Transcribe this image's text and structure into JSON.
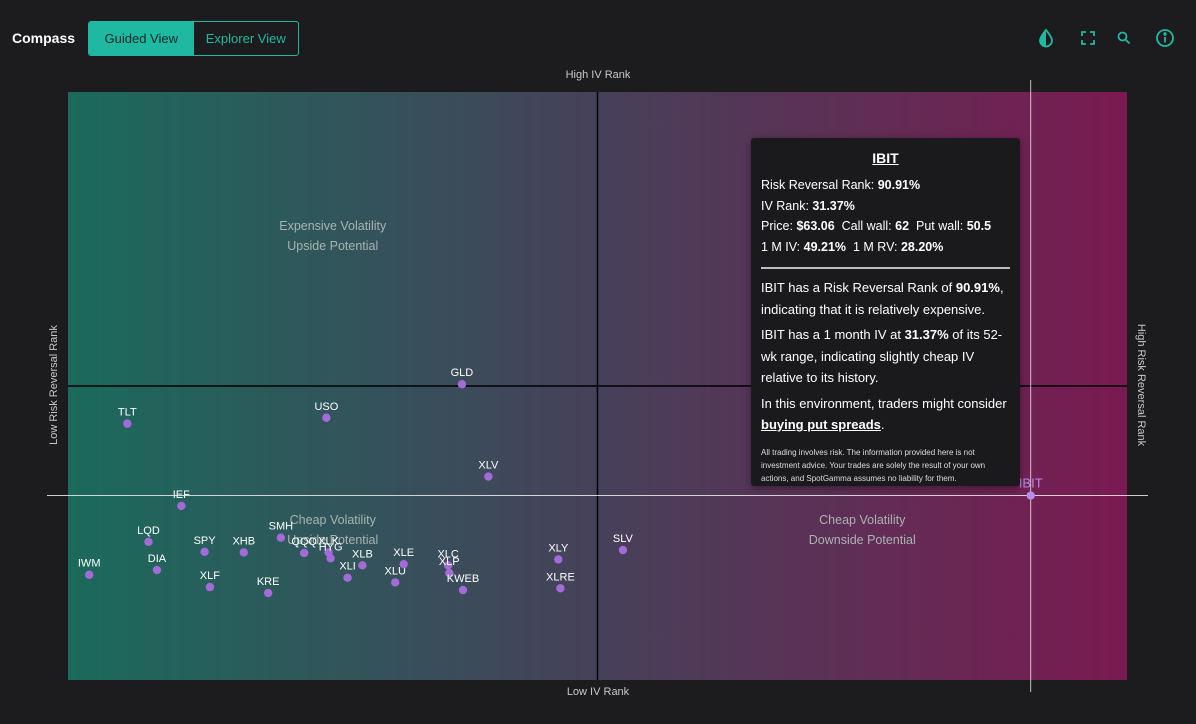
{
  "app": {
    "title": "Compass",
    "views": [
      "Guided View",
      "Explorer View"
    ],
    "active_view": "Guided View"
  },
  "toolbar": {
    "icons": [
      "contrast-icon",
      "fullscreen-icon",
      "zoom-icon",
      "info-icon"
    ]
  },
  "colors": {
    "accent": "#1fb8a0",
    "left_gradient": "#1b6a5c",
    "mid_gradient": "#46415a",
    "right_gradient": "#7a1a52",
    "point": "#a46ad8",
    "highlight_point": "#b98ce6"
  },
  "chart_data": {
    "type": "scatter",
    "xlabel_low": "Low IV Rank",
    "xlabel_high": "High IV Rank",
    "ylabel_low": "Low Risk Reversal Rank",
    "ylabel_high": "High Risk Reversal Rank",
    "quadrant_labels": [
      {
        "quadrant": "top-left",
        "line1": "Expensive Volatility",
        "line2": "Upside Potential"
      },
      {
        "quadrant": "bottom-left",
        "line1": "Cheap Volatility",
        "line2": "Upside Potential"
      },
      {
        "quadrant": "bottom-right",
        "line1": "Cheap Volatility",
        "line2": "Downside Potential"
      }
    ],
    "x_range": [
      0,
      100
    ],
    "y_range": [
      0,
      100
    ],
    "grid": false,
    "points": [
      {
        "label": "GLD",
        "x": 37.2,
        "y": 50.3
      },
      {
        "label": "TLT",
        "x": 5.6,
        "y": 43.6
      },
      {
        "label": "USO",
        "x": 24.4,
        "y": 44.6
      },
      {
        "label": "XLV",
        "x": 39.7,
        "y": 34.6
      },
      {
        "label": "IEF",
        "x": 10.7,
        "y": 29.6
      },
      {
        "label": "LQD",
        "x": 7.6,
        "y": 23.5
      },
      {
        "label": "SMH",
        "x": 20.1,
        "y": 24.2
      },
      {
        "label": "QQQ",
        "x": 22.3,
        "y": 21.6
      },
      {
        "label": "XLK",
        "x": 24.6,
        "y": 21.7
      },
      {
        "label": "HYG",
        "x": 24.8,
        "y": 20.7
      },
      {
        "label": "XHB",
        "x": 16.6,
        "y": 21.7
      },
      {
        "label": "SPY",
        "x": 12.9,
        "y": 21.8
      },
      {
        "label": "DIA",
        "x": 8.4,
        "y": 18.7
      },
      {
        "label": "IWM",
        "x": 2.0,
        "y": 17.9
      },
      {
        "label": "XLF",
        "x": 13.4,
        "y": 15.8
      },
      {
        "label": "KRE",
        "x": 18.9,
        "y": 14.8
      },
      {
        "label": "XLI",
        "x": 26.4,
        "y": 17.4
      },
      {
        "label": "XLB",
        "x": 27.8,
        "y": 19.5
      },
      {
        "label": "XLU",
        "x": 30.9,
        "y": 16.6
      },
      {
        "label": "XLE",
        "x": 31.7,
        "y": 19.7
      },
      {
        "label": "XLC",
        "x": 35.9,
        "y": 19.5
      },
      {
        "label": "XLP",
        "x": 36.0,
        "y": 18.2
      },
      {
        "label": "KWEB",
        "x": 37.3,
        "y": 15.3
      },
      {
        "label": "XLY",
        "x": 46.3,
        "y": 20.5
      },
      {
        "label": "XLRE",
        "x": 46.5,
        "y": 15.6
      },
      {
        "label": "SLV",
        "x": 52.4,
        "y": 22.1
      },
      {
        "label": "IBIT",
        "x": 90.91,
        "y": 31.37
      }
    ],
    "highlighted": "IBIT"
  },
  "tooltip": {
    "symbol": "IBIT",
    "rr_rank_label": "Risk Reversal Rank:",
    "rr_rank_value": "90.91%",
    "iv_rank_label": "IV Rank:",
    "iv_rank_value": "31.37%",
    "price_label": "Price:",
    "price_value": "$63.06",
    "call_wall_label": "Call wall:",
    "call_wall_value": "62",
    "put_wall_label": "Put wall:",
    "put_wall_value": "50.5",
    "m1_iv_label": "1 M IV:",
    "m1_iv_value": "49.21%",
    "m1_rv_label": "1 M RV:",
    "m1_rv_value": "28.20%",
    "para1_a": "IBIT has a Risk Reversal Rank of ",
    "para1_b": "90.91%",
    "para1_c": ", indicating that it is relatively expensive.",
    "para2_a": "IBIT has a 1 month IV at ",
    "para2_b": "31.37%",
    "para2_c": " of its 52-wk range, indicating slightly cheap IV relative to its history.",
    "para3_a": "In this environment, traders might consider ",
    "para3_link": "buying put spreads",
    "para3_c": ".",
    "disclaimer": "All trading involves risk. The information provided here is not investment advice. Your trades are solely the result of your own actions, and SpotGamma assumes no liability for them."
  }
}
